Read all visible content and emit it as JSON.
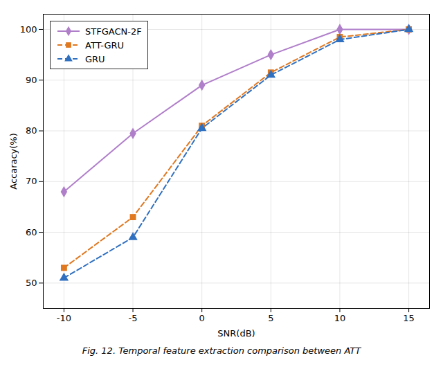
{
  "chart_data": {
    "type": "line",
    "x": [
      -10,
      -5,
      0,
      5,
      10,
      15
    ],
    "series": [
      {
        "name": "STFGACN-2F",
        "color": "#b07fca",
        "marker": "diamond",
        "line_style": "solid",
        "values": [
          68,
          79.5,
          89,
          95,
          100,
          100
        ]
      },
      {
        "name": "ATT-GRU",
        "color": "#e07820",
        "marker": "square",
        "line_style": "dashed",
        "values": [
          53,
          63,
          81,
          91.5,
          98.5,
          100
        ]
      },
      {
        "name": "GRU",
        "color": "#3070c0",
        "marker": "triangle",
        "line_style": "dashed",
        "values": [
          51,
          59,
          80.5,
          91,
          98,
          100
        ]
      }
    ],
    "xlabel": "SNR(dB)",
    "ylabel": "Accaracy(%)",
    "xlim": [
      -11.5,
      16.5
    ],
    "ylim": [
      45,
      103
    ],
    "xticks": [
      -10,
      -5,
      0,
      5,
      10,
      15
    ],
    "yticks": [
      50,
      60,
      70,
      80,
      90,
      100
    ],
    "grid": true,
    "legend": "upper left",
    "caption": "Fig. 12. Temporal feature extraction comparison between ATT"
  }
}
